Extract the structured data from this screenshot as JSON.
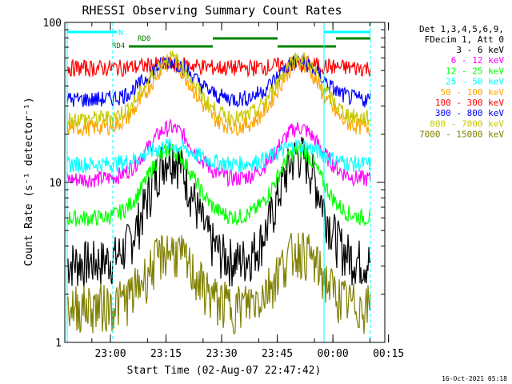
{
  "chart_data": {
    "type": "line",
    "title": "RHESSI Observing Summary Count Rates",
    "xlabel": "Start Time (02-Aug-07 22:47:42)",
    "ylabel": "Count Rate (s⁻¹ detector⁻¹)",
    "yscale": "log",
    "ylim": [
      1,
      100
    ],
    "xlim_minutes": [
      -12.3,
      31.3
    ],
    "x_ticks": [
      {
        "label": "23:00",
        "min": 0
      },
      {
        "label": "23:15",
        "min": 15
      },
      {
        "label": "23:30",
        "min": 30
      },
      {
        "label": "23:45",
        "min": 45
      },
      {
        "label": "00:00",
        "min": 60
      },
      {
        "label": "00:15",
        "min": 75
      }
    ],
    "y_ticks": [
      "1",
      "10",
      "100"
    ],
    "legend_header": [
      "Det 1,3,4,5,6,9,",
      "FDecim 1, Att 0"
    ],
    "series": [
      {
        "name": "3 - 6 keV",
        "color": "#000000",
        "base": 3.2,
        "peak": 15.0
      },
      {
        "name": "6 - 12 keV",
        "color": "#ff00ff",
        "base": 10.5,
        "peak": 22.0
      },
      {
        "name": "12 - 25 keV",
        "color": "#00ff00",
        "base": 6.0,
        "peak": 16.0
      },
      {
        "name": "25 - 50 keV",
        "color": "#00ffff",
        "base": 13.0,
        "peak": 17.0
      },
      {
        "name": "50 - 100 keV",
        "color": "#ffa500",
        "base": 22.0,
        "peak": 55.0
      },
      {
        "name": "100 - 300 keV",
        "color": "#ff0000",
        "base": 52.0,
        "peak": 55.0
      },
      {
        "name": "300 - 800 keV",
        "color": "#0000ff",
        "base": 33.0,
        "peak": 57.0
      },
      {
        "name": "800 - 7000 keV",
        "color": "#c8c800",
        "base": 25.0,
        "peak": 60.0
      },
      {
        "name": "7000 - 15000 keV",
        "color": "#808000",
        "base": 1.7,
        "peak": 3.8
      }
    ],
    "annotations": {
      "night_label": "N",
      "saa_labels": [
        "RD4",
        "RD0"
      ]
    },
    "footer_timestamp": "16-Oct-2021 05:18"
  }
}
